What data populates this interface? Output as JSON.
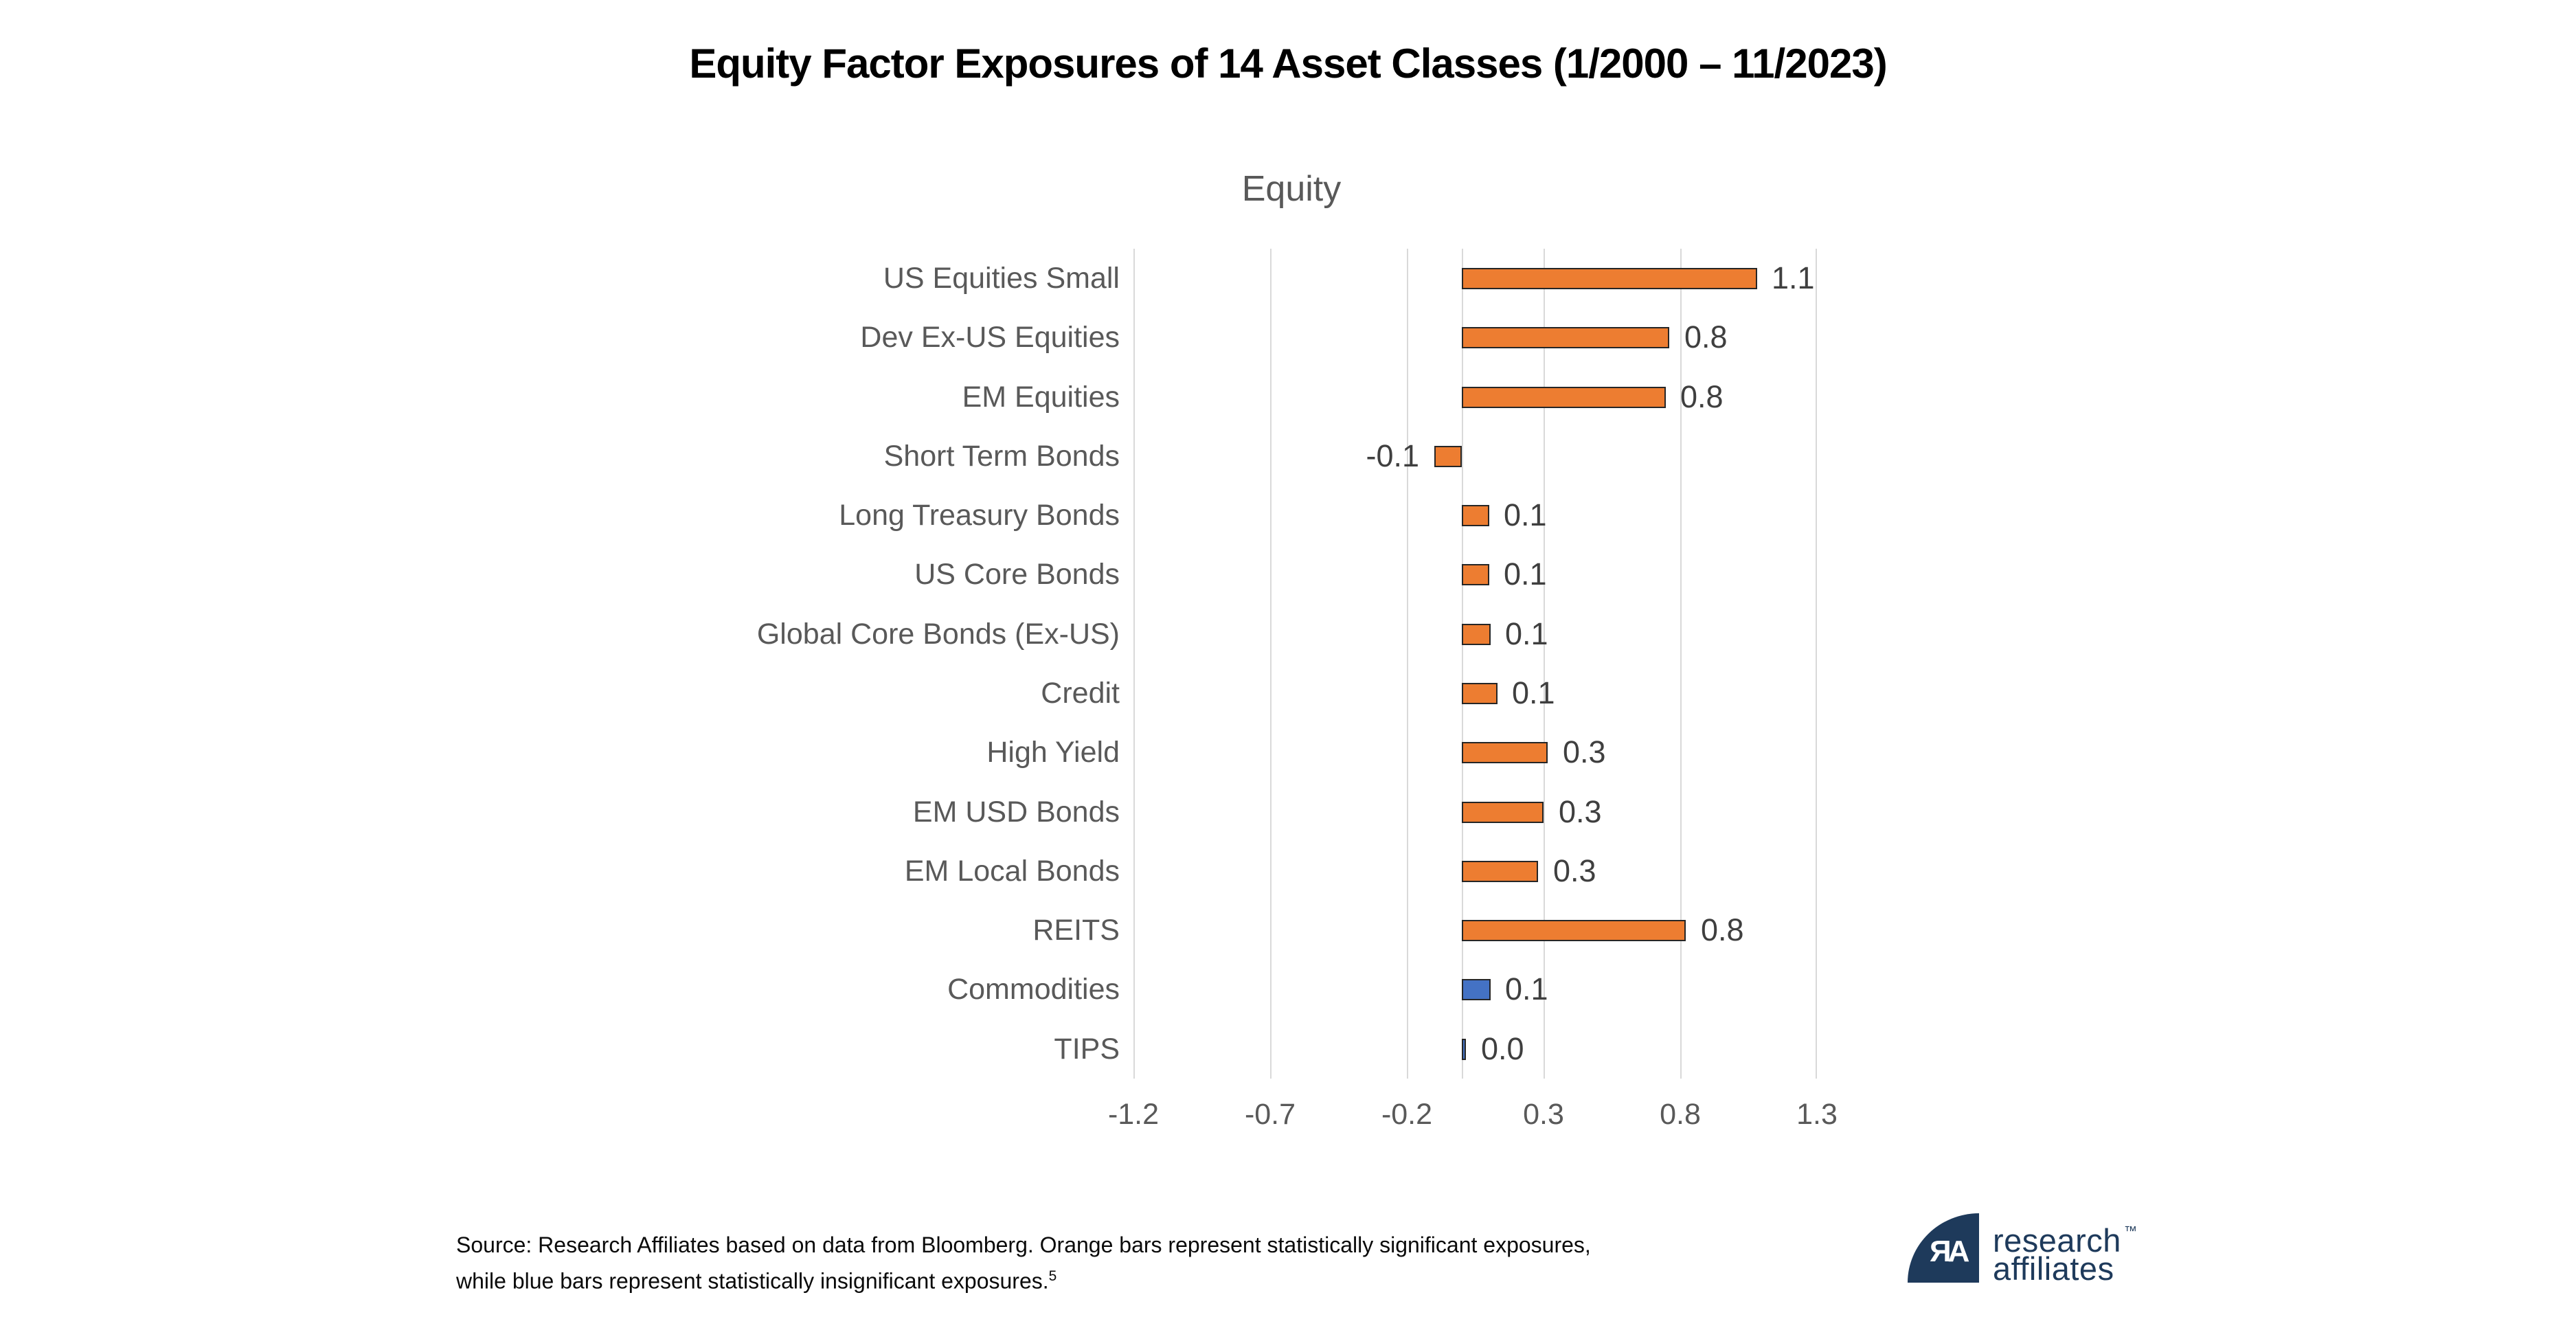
{
  "title": "Equity Factor Exposures of 14 Asset Classes (1/2000 – 11/2023)",
  "chart_data": {
    "type": "bar",
    "orientation": "horizontal",
    "title": "Equity",
    "categories": [
      "US Equities Small",
      "Dev Ex-US Equities",
      "EM Equities",
      "Short Term Bonds",
      "Long Treasury Bonds",
      "US Core Bonds",
      "Global Core Bonds (Ex-US)",
      "Credit",
      "High Yield",
      "EM USD Bonds",
      "EM Local Bonds",
      "REITS",
      "Commodities",
      "TIPS"
    ],
    "values": [
      1.1,
      0.8,
      0.8,
      -0.1,
      0.1,
      0.1,
      0.1,
      0.1,
      0.3,
      0.3,
      0.3,
      0.8,
      0.1,
      0.0
    ],
    "labels": [
      "1.1",
      "0.8",
      "0.8",
      "-0.1",
      "0.1",
      "0.1",
      "0.1",
      "0.1",
      "0.3",
      "0.3",
      "0.3",
      "0.8",
      "0.1",
      "0.0"
    ],
    "bar_lengths": [
      1.08,
      0.76,
      0.745,
      -0.1,
      0.1,
      0.1,
      0.105,
      0.13,
      0.315,
      0.3,
      0.28,
      0.82,
      0.105,
      0.006
    ],
    "significant": [
      true,
      true,
      true,
      true,
      true,
      true,
      true,
      true,
      true,
      true,
      true,
      true,
      false,
      false
    ],
    "x_ticks": [
      -1.2,
      -0.7,
      -0.2,
      0.3,
      0.8,
      1.3
    ],
    "x_tick_labels": [
      "-1.2",
      "-0.7",
      "-0.2",
      "0.3",
      "0.8",
      "1.3"
    ],
    "xlim": [
      -1.2,
      1.3
    ],
    "zero_line": true,
    "grid": true,
    "legend": "none",
    "colors": {
      "significant_bar": "#ED7D31",
      "insignificant_bar": "#4472C4",
      "bar_border": "#262626",
      "gridline": "#D9D9D9",
      "category_text": "#595959",
      "data_label_text": "#3F3F3F",
      "tick_text": "#595959",
      "subtitle_text": "#595959",
      "title_text": "#000000"
    }
  },
  "footer": {
    "line1": "Source: Research Affiliates based on data from Bloomberg. Orange bars represent statistically significant exposures,",
    "line2": "while blue bars represent statistically insignificant exposures.",
    "footnote": "5"
  },
  "logo": {
    "monogram": "ЯA",
    "brand_line1": "research",
    "brand_line2": "affiliates",
    "trademark": "™",
    "color": "#1E3A5B"
  }
}
